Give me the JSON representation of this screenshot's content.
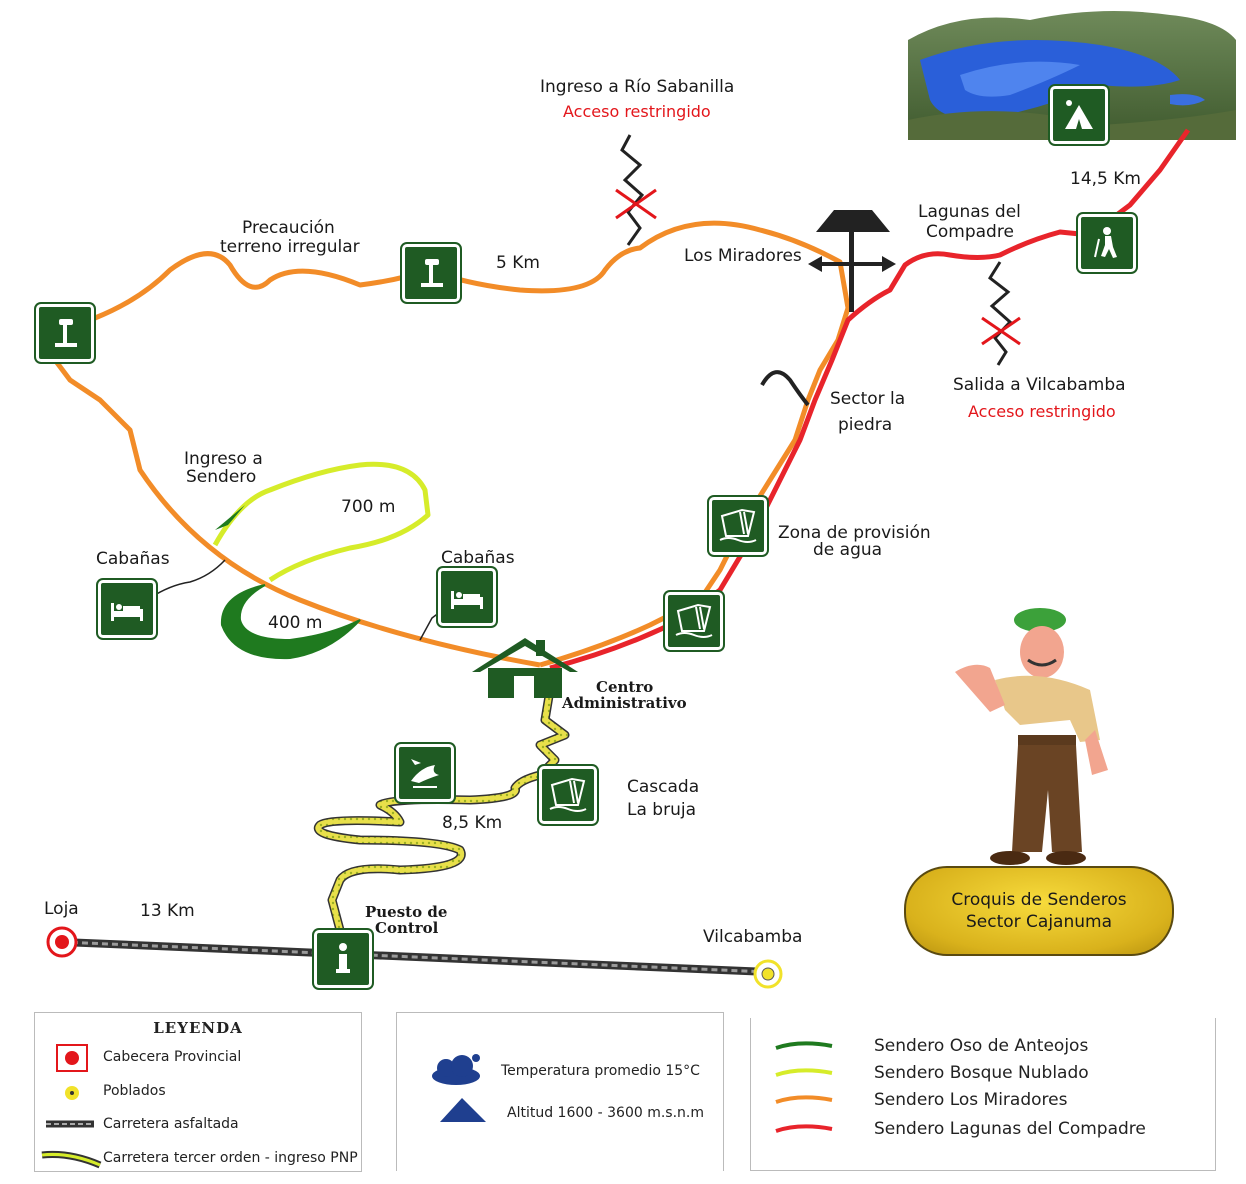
{
  "labels": {
    "rio_sabanilla": "Ingreso a Río Sabanilla",
    "rio_sabanilla_restr": "Acceso restringido",
    "precaucion_1": "Precaución",
    "precaucion_2": "terreno irregular",
    "dist_5km": "5 Km",
    "los_miradores": "Los Miradores",
    "lagunas_1": "Lagunas  del",
    "lagunas_2": "Compadre",
    "dist_14_5": "14,5 Km",
    "salida_vilcabamba": "Salida a Vilcabamba",
    "salida_restr": "Acceso restringido",
    "sector_piedra_1": "Sector la",
    "sector_piedra_2": "piedra",
    "ingreso_sendero_1": "Ingreso a",
    "ingreso_sendero_2": "Sendero",
    "dist_700m": "700 m",
    "dist_400m": "400 m",
    "cabanas_left": "Cabañas",
    "cabanas_right": "Cabañas",
    "zona_agua_1": "Zona de provisión",
    "zona_agua_2": "de agua",
    "centro_1": "Centro",
    "centro_2": "Administrativo",
    "cascada_1": "Cascada",
    "cascada_2": "La bruja",
    "dist_8_5": "8,5 Km",
    "loja": "Loja",
    "dist_13": "13 Km",
    "puesto_1": "Puesto de",
    "puesto_2": "Control",
    "vilcabamba": "Vilcabamba"
  },
  "plaque": {
    "line1": "Croquis de Senderos",
    "line2": "Sector Cajanuma"
  },
  "legend": {
    "title": "LEYENDA",
    "items": [
      "Cabecera Provincial",
      "Poblados",
      "Carretera asfaltada",
      "Carretera tercer orden - ingreso PNP"
    ]
  },
  "climate": {
    "temperature": "Temperatura promedio 15°C",
    "altitude": "Altitud 1600 - 3600 m.s.n.m"
  },
  "trails": [
    {
      "name": "Sendero Oso de Anteojos",
      "color": "#1f7a1f"
    },
    {
      "name": "Sendero Bosque Nublado",
      "color": "#d6ec2a"
    },
    {
      "name": "Sendero Los Miradores",
      "color": "#f28c28"
    },
    {
      "name": "Sendero Lagunas del Compadre",
      "color": "#e8242b"
    }
  ],
  "colors": {
    "sign_green": "#1f5b23",
    "road": "#555555",
    "restricted": "#e3161b"
  },
  "icons": [
    "viewpoint-icon",
    "camping-icon",
    "hiker-icon",
    "waterfall-icon",
    "bed-icon",
    "bird-icon",
    "info-icon",
    "house-icon",
    "signpost-icon"
  ]
}
